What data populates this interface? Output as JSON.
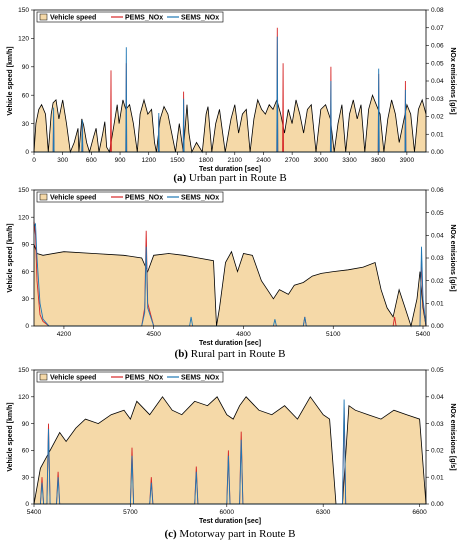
{
  "chart_data": [
    {
      "id": "a",
      "type": "area",
      "caption_letter": "(a)",
      "caption_text": " Urban part in Route B",
      "xlabel": "Test duration [sec]",
      "ylabel_left": "Vehicle speed [km/h]",
      "ylabel_right": "NOx emissions [g/s]",
      "xlim": [
        0,
        4100
      ],
      "ylim_left": [
        0,
        150
      ],
      "ylim_right": [
        0,
        0.08
      ],
      "xticks": [
        0,
        300,
        600,
        900,
        1200,
        1500,
        1800,
        2100,
        2400,
        2700,
        3000,
        3300,
        3600,
        3900
      ],
      "yticks_left": [
        0,
        30,
        60,
        90,
        120,
        150
      ],
      "yticks_right": [
        0,
        0.01,
        0.02,
        0.03,
        0.04,
        0.05,
        0.06,
        0.07,
        0.08
      ],
      "yticks_right_labels": [
        "0.00",
        "0.01",
        "0.02",
        "0.03",
        "0.04",
        "0.05",
        "0.06",
        "0.07",
        "0.08"
      ],
      "legend": [
        "Vehicle speed",
        "PEMS_NOx",
        "SEMS_NOx"
      ],
      "series": [
        {
          "name": "Vehicle speed",
          "axis": "left",
          "x": [
            0,
            20,
            50,
            80,
            120,
            150,
            180,
            200,
            230,
            260,
            290,
            300,
            340,
            380,
            420,
            460,
            470,
            500,
            520,
            550,
            580,
            620,
            650,
            680,
            720,
            740,
            760,
            790,
            830,
            870,
            890,
            930,
            960,
            1000,
            1040,
            1080,
            1110,
            1150,
            1190,
            1230,
            1260,
            1280,
            1320,
            1360,
            1400,
            1440,
            1480,
            1520,
            1560,
            1600,
            1620,
            1650,
            1700,
            1760,
            1800,
            1820,
            1860,
            1900,
            1940,
            2000,
            2060,
            2100,
            2140,
            2180,
            2220,
            2260,
            2300,
            2340,
            2380,
            2420,
            2460,
            2500,
            2540,
            2580,
            2620,
            2660,
            2700,
            2740,
            2780,
            2820,
            2860,
            2900,
            2950,
            3000,
            3050,
            3100,
            3140,
            3180,
            3220,
            3260,
            3300,
            3340,
            3380,
            3420,
            3460,
            3500,
            3540,
            3580,
            3620,
            3660,
            3700,
            3740,
            3780,
            3820,
            3860,
            3900,
            3940,
            3980,
            4020,
            4060,
            4100
          ],
          "values": [
            0,
            30,
            45,
            50,
            40,
            0,
            40,
            52,
            55,
            35,
            50,
            55,
            30,
            0,
            10,
            25,
            0,
            35,
            28,
            10,
            0,
            15,
            25,
            0,
            20,
            32,
            5,
            0,
            25,
            50,
            30,
            55,
            45,
            50,
            30,
            0,
            40,
            55,
            40,
            45,
            10,
            0,
            35,
            48,
            40,
            20,
            0,
            30,
            0,
            50,
            20,
            0,
            10,
            0,
            40,
            48,
            0,
            30,
            45,
            0,
            35,
            50,
            20,
            40,
            45,
            0,
            35,
            55,
            45,
            40,
            50,
            45,
            55,
            40,
            20,
            45,
            30,
            55,
            40,
            20,
            45,
            50,
            0,
            45,
            50,
            35,
            0,
            30,
            50,
            0,
            40,
            55,
            35,
            50,
            0,
            45,
            60,
            50,
            40,
            0,
            35,
            55,
            40,
            10,
            30,
            50,
            40,
            0,
            45,
            55,
            40
          ]
        },
        {
          "name": "PEMS_NOx",
          "axis": "right",
          "x": [
            0,
            200,
            205,
            210,
            500,
            505,
            510,
            800,
            805,
            810,
            960,
            965,
            970,
            1300,
            1305,
            1310,
            1560,
            1565,
            1570,
            2540,
            2545,
            2550,
            2600,
            2605,
            2610,
            3100,
            3105,
            3110,
            3600,
            3605,
            3610,
            3880,
            3885,
            3890,
            4100
          ],
          "values": [
            0,
            0,
            0.02,
            0,
            0,
            0.015,
            0,
            0,
            0.046,
            0,
            0,
            0.05,
            0,
            0,
            0.02,
            0,
            0,
            0.034,
            0,
            0,
            0.07,
            0,
            0,
            0.05,
            0,
            0,
            0.048,
            0,
            0,
            0.044,
            0,
            0,
            0.04,
            0,
            0
          ]
        },
        {
          "name": "SEMS_NOx",
          "axis": "right",
          "x": [
            0,
            200,
            205,
            210,
            500,
            505,
            510,
            960,
            965,
            970,
            1300,
            1305,
            1310,
            1560,
            1565,
            1570,
            2540,
            2545,
            2550,
            3100,
            3105,
            3110,
            3600,
            3605,
            3610,
            3880,
            3885,
            3890,
            4100
          ],
          "values": [
            0,
            0,
            0.025,
            0,
            0,
            0.018,
            0,
            0,
            0.059,
            0,
            0,
            0.022,
            0,
            0,
            0.03,
            0,
            0,
            0.065,
            0,
            0,
            0.04,
            0,
            0,
            0.047,
            0,
            0,
            0.035,
            0,
            0
          ]
        }
      ]
    },
    {
      "id": "b",
      "type": "area",
      "caption_letter": "(b)",
      "caption_text": " Rural part in Route B",
      "xlabel": "Test duration [sec]",
      "ylabel_left": "Vehicle speed [km/h]",
      "ylabel_right": "NOx emissions [g/s]",
      "xlim": [
        4100,
        5410
      ],
      "ylim_left": [
        0,
        150
      ],
      "ylim_right": [
        0,
        0.06
      ],
      "xticks": [
        4200,
        4500,
        4800,
        5100,
        5400
      ],
      "yticks_left": [
        0,
        30,
        60,
        90,
        120,
        150
      ],
      "yticks_right": [
        0,
        0.01,
        0.02,
        0.03,
        0.04,
        0.05,
        0.06
      ],
      "yticks_right_labels": [
        "0.00",
        "0.01",
        "0.02",
        "0.03",
        "0.04",
        "0.05",
        "0.06"
      ],
      "legend": [
        "Vehicle speed",
        "PEMS_NOx",
        "SEMS_NOx"
      ],
      "series": [
        {
          "name": "Vehicle speed",
          "axis": "left",
          "x": [
            4100,
            4110,
            4130,
            4200,
            4300,
            4400,
            4460,
            4480,
            4500,
            4550,
            4600,
            4650,
            4700,
            4710,
            4720,
            4740,
            4760,
            4780,
            4800,
            4830,
            4860,
            4880,
            4900,
            4920,
            4950,
            4970,
            5000,
            5030,
            5060,
            5100,
            5150,
            5200,
            5240,
            5260,
            5280,
            5300,
            5320,
            5340,
            5360,
            5380,
            5390,
            5400,
            5410
          ],
          "values": [
            90,
            80,
            78,
            82,
            80,
            78,
            75,
            60,
            78,
            80,
            78,
            75,
            72,
            0,
            20,
            70,
            82,
            60,
            80,
            78,
            50,
            40,
            30,
            40,
            35,
            45,
            48,
            55,
            58,
            60,
            62,
            65,
            70,
            40,
            20,
            10,
            40,
            20,
            0,
            30,
            60,
            20,
            0
          ]
        },
        {
          "name": "PEMS_NOx",
          "axis": "right",
          "x": [
            4100,
            4105,
            4110,
            4120,
            4130,
            4150,
            4460,
            4470,
            4475,
            4480,
            4500,
            5000,
            5005,
            5010,
            5300,
            5305,
            5310,
            5390,
            5395,
            5400,
            5410
          ],
          "values": [
            0.046,
            0.04,
            0.02,
            0.005,
            0.002,
            0,
            0,
            0.008,
            0.042,
            0.01,
            0,
            0,
            0.004,
            0,
            0,
            0.004,
            0,
            0,
            0.03,
            0.01,
            0
          ]
        },
        {
          "name": "SEMS_NOx",
          "axis": "right",
          "x": [
            4100,
            4105,
            4110,
            4120,
            4130,
            4150,
            4460,
            4470,
            4475,
            4480,
            4500,
            4620,
            4625,
            4630,
            4900,
            4905,
            4910,
            5000,
            5005,
            5010,
            5390,
            5395,
            5400,
            5410
          ],
          "values": [
            0.044,
            0.045,
            0.03,
            0.01,
            0.003,
            0,
            0,
            0.006,
            0.035,
            0.008,
            0,
            0,
            0.004,
            0,
            0,
            0.003,
            0,
            0,
            0.004,
            0,
            0,
            0.035,
            0.012,
            0
          ]
        }
      ]
    },
    {
      "id": "c",
      "type": "area",
      "caption_letter": "(c)",
      "caption_text": " Motorway part in Route B",
      "xlabel": "Test duration [sec]",
      "ylabel_left": "Vehicle speed [km/h]",
      "ylabel_right": "NOx emissions [g/s]",
      "xlim": [
        5400,
        6620
      ],
      "ylim_left": [
        0,
        150
      ],
      "ylim_right": [
        0,
        0.05
      ],
      "xticks": [
        5400,
        5700,
        6000,
        6300,
        6600
      ],
      "yticks_left": [
        0,
        30,
        60,
        90,
        120,
        150
      ],
      "yticks_right": [
        0,
        0.01,
        0.02,
        0.03,
        0.04,
        0.05
      ],
      "yticks_right_labels": [
        "0.00",
        "0.01",
        "0.02",
        "0.03",
        "0.04",
        "0.05"
      ],
      "legend": [
        "Vehicle speed",
        "PEMS_NOx",
        "SEMS_NOx"
      ],
      "series": [
        {
          "name": "Vehicle speed",
          "axis": "left",
          "x": [
            5400,
            5420,
            5450,
            5480,
            5500,
            5530,
            5560,
            5600,
            5640,
            5680,
            5700,
            5720,
            5760,
            5800,
            5830,
            5860,
            5900,
            5940,
            5970,
            6000,
            6020,
            6040,
            6060,
            6100,
            6140,
            6180,
            6220,
            6260,
            6300,
            6320,
            6340,
            6360,
            6380,
            6400,
            6440,
            6480,
            6520,
            6560,
            6600,
            6620
          ],
          "values": [
            0,
            40,
            60,
            80,
            70,
            85,
            95,
            90,
            100,
            105,
            95,
            115,
            100,
            120,
            105,
            100,
            115,
            110,
            120,
            100,
            95,
            110,
            120,
            105,
            100,
            110,
            95,
            120,
            100,
            95,
            0,
            0,
            110,
            105,
            100,
            95,
            105,
            100,
            95,
            0
          ]
        },
        {
          "name": "PEMS_NOx",
          "axis": "right",
          "x": [
            5400,
            5420,
            5425,
            5430,
            5440,
            5445,
            5450,
            5470,
            5475,
            5480,
            5700,
            5705,
            5710,
            5760,
            5765,
            5770,
            5900,
            5905,
            5910,
            6000,
            6005,
            6010,
            6040,
            6045,
            6050,
            6360,
            6365,
            6370,
            6620
          ],
          "values": [
            0,
            0,
            0.01,
            0,
            0,
            0.03,
            0,
            0,
            0.012,
            0,
            0,
            0.021,
            0,
            0,
            0.01,
            0,
            0,
            0.014,
            0,
            0,
            0.02,
            0,
            0,
            0.027,
            0,
            0,
            0.036,
            0,
            0
          ]
        },
        {
          "name": "SEMS_NOx",
          "axis": "right",
          "x": [
            5400,
            5420,
            5425,
            5430,
            5440,
            5445,
            5450,
            5470,
            5475,
            5480,
            5700,
            5705,
            5710,
            5760,
            5765,
            5770,
            5900,
            5905,
            5910,
            6000,
            6005,
            6010,
            6040,
            6045,
            6050,
            6360,
            6365,
            6370,
            6620
          ],
          "values": [
            0,
            0,
            0.008,
            0,
            0,
            0.028,
            0,
            0,
            0.01,
            0,
            0,
            0.018,
            0,
            0,
            0.008,
            0,
            0,
            0.012,
            0,
            0,
            0.018,
            0,
            0,
            0.024,
            0,
            0,
            0.039,
            0,
            0
          ]
        }
      ]
    }
  ],
  "colors": {
    "speed_fill": "#f5d9a8",
    "speed_line": "#000000",
    "pems": "#d62728",
    "sems": "#1f77b4"
  }
}
